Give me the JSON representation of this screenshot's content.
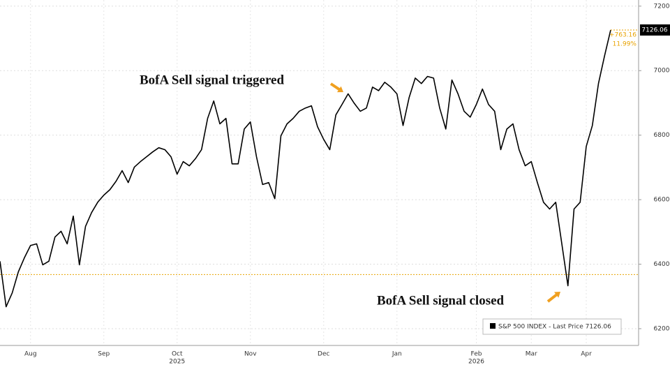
{
  "chart_data": {
    "type": "line",
    "categories": [
      null,
      null,
      null,
      null,
      null,
      "Aug",
      null,
      null,
      null,
      null,
      null,
      null,
      null,
      null,
      null,
      null,
      null,
      "Sep",
      null,
      null,
      null,
      null,
      null,
      null,
      null,
      null,
      null,
      null,
      null,
      "Oct",
      null,
      null,
      null,
      null,
      null,
      null,
      null,
      null,
      null,
      null,
      null,
      "Nov",
      null,
      null,
      null,
      null,
      null,
      null,
      null,
      null,
      null,
      null,
      null,
      "Dec",
      null,
      null,
      null,
      null,
      null,
      null,
      null,
      null,
      null,
      null,
      null,
      "Jan",
      null,
      null,
      null,
      null,
      null,
      null,
      null,
      null,
      null,
      null,
      null,
      null,
      "Feb",
      null,
      null,
      null,
      null,
      null,
      null,
      null,
      null,
      "Mar",
      null,
      null,
      null,
      null,
      null,
      null,
      null,
      null,
      "Apr",
      null,
      null,
      null,
      null
    ],
    "year_labels": [
      {
        "index": 29,
        "label": "2025"
      },
      {
        "index": 78,
        "label": "2026"
      }
    ],
    "series": [
      {
        "name": "S&P 500 INDEX - Last Price 7126.06",
        "color": "#000000",
        "values": [
          6409,
          6268,
          6311,
          6376,
          6420,
          6458,
          6463,
          6398,
          6409,
          6484,
          6502,
          6463,
          6549,
          6398,
          6517,
          6560,
          6592,
          6614,
          6631,
          6657,
          6690,
          6653,
          6701,
          6718,
          6733,
          6748,
          6761,
          6755,
          6733,
          6679,
          6718,
          6705,
          6727,
          6755,
          6852,
          6906,
          6835,
          6852,
          6711,
          6711,
          6819,
          6841,
          6733,
          6647,
          6653,
          6603,
          6798,
          6835,
          6852,
          6874,
          6884,
          6891,
          6826,
          6787,
          6755,
          6863,
          6895,
          6928,
          6899,
          6874,
          6884,
          6949,
          6938,
          6964,
          6949,
          6928,
          6830,
          6917,
          6977,
          6960,
          6982,
          6977,
          6884,
          6819,
          6971,
          6928,
          6874,
          6856,
          6895,
          6943,
          6895,
          6874,
          6755,
          6819,
          6835,
          6755,
          6705,
          6718,
          6653,
          6592,
          6571,
          6592,
          6463,
          6333,
          6571,
          6592,
          6765,
          6830,
          6960,
          7046,
          7126.06
        ]
      }
    ],
    "ylim": [
      6148,
      7219
    ],
    "yticks": [
      6200,
      6400,
      6600,
      6800,
      7000,
      7200
    ],
    "grid": true,
    "reference_line": {
      "value": 6368,
      "color": "#e8a200"
    },
    "change": "+763.16",
    "change_pct": "11.99%",
    "annotations": [
      {
        "text": "BofA Sell signal triggered",
        "index": 57
      },
      {
        "text": "BofA Sell signal closed",
        "index": 93
      }
    ]
  }
}
